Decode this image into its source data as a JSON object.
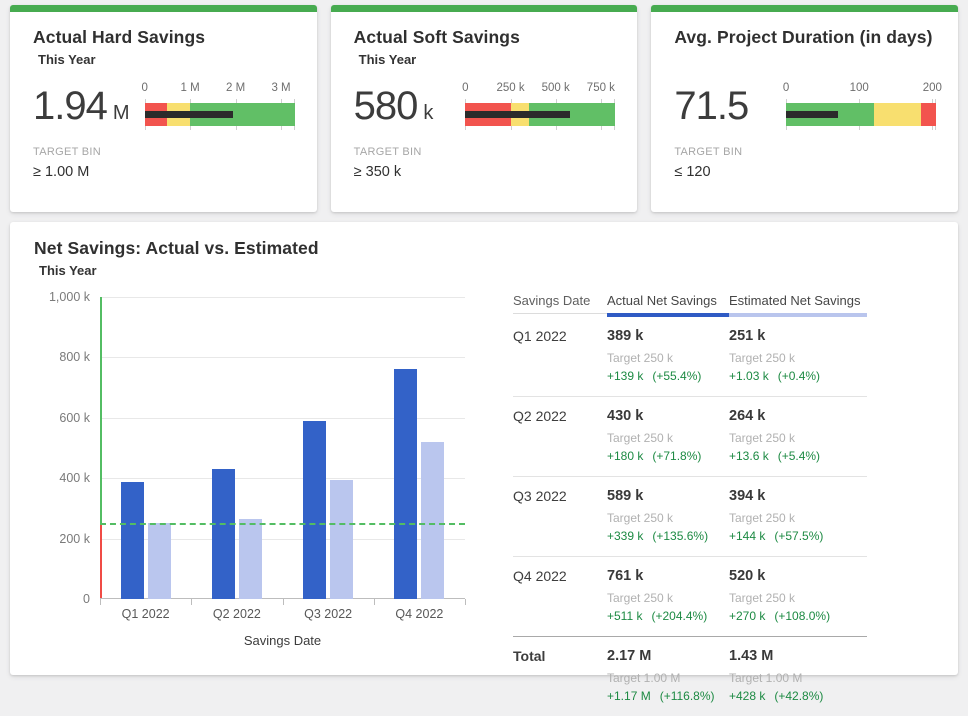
{
  "palette": {
    "accent_green": "#47ab50",
    "bullet_red": "#f2544e",
    "bullet_yellow": "#f8df6f",
    "bullet_green": "#61bf66",
    "measure_black": "#2b2b2b",
    "bar_actual_blue": "#3362c8",
    "bar_estimated_lavender": "#bac6ee",
    "target_dash_green": "#53bd63",
    "axis_below_target_red": "#f04b45",
    "delta_text_green": "#1d8a43"
  },
  "kpi_cards": [
    {
      "title": "Actual Hard Savings",
      "subtitle": "This Year",
      "value": "1.94",
      "unit": "M",
      "target_bin_label": "TARGET BIN",
      "target_bin_value": "≥ 1.00 M",
      "bullet": {
        "max": 3.3,
        "value": 1.94,
        "segments": [
          {
            "color": "red",
            "from": 0,
            "to": 0.5
          },
          {
            "color": "yellow",
            "from": 0.5,
            "to": 1
          },
          {
            "color": "green",
            "from": 1,
            "to": 3.3
          }
        ],
        "ticks": [
          {
            "label": "0",
            "value": 0
          },
          {
            "label": "1 M",
            "value": 1
          },
          {
            "label": "2 M",
            "value": 2
          },
          {
            "label": "3 M",
            "value": 3
          }
        ]
      }
    },
    {
      "title": "Actual Soft Savings",
      "subtitle": "This Year",
      "value": "580",
      "unit": "k",
      "target_bin_label": "TARGET BIN",
      "target_bin_value": "≥ 350 k",
      "bullet": {
        "max": 830,
        "value": 580,
        "segments": [
          {
            "color": "red",
            "from": 0,
            "to": 250
          },
          {
            "color": "yellow",
            "from": 250,
            "to": 350
          },
          {
            "color": "green",
            "from": 350,
            "to": 830
          }
        ],
        "ticks": [
          {
            "label": "0",
            "value": 0
          },
          {
            "label": "250 k",
            "value": 250
          },
          {
            "label": "500 k",
            "value": 500
          },
          {
            "label": "750 k",
            "value": 750
          }
        ]
      }
    },
    {
      "title": "Avg. Project Duration (in days)",
      "subtitle": "",
      "value": "71.5",
      "unit": "",
      "target_bin_label": "TARGET BIN",
      "target_bin_value": "≤ 120",
      "bullet": {
        "max": 205,
        "value": 71.5,
        "segments": [
          {
            "color": "green",
            "from": 0,
            "to": 120
          },
          {
            "color": "yellow",
            "from": 120,
            "to": 185
          },
          {
            "color": "red",
            "from": 185,
            "to": 205
          }
        ],
        "ticks": [
          {
            "label": "0",
            "value": 0
          },
          {
            "label": "100",
            "value": 100
          },
          {
            "label": "200",
            "value": 200
          }
        ]
      }
    }
  ],
  "main": {
    "title": "Net Savings: Actual vs. Estimated",
    "subtitle": "This Year"
  },
  "chart_data": {
    "type": "bar",
    "title": "Net Savings: Actual vs. Estimated",
    "subtitle": "This Year",
    "categories": [
      "Q1 2022",
      "Q2 2022",
      "Q3 2022",
      "Q4 2022"
    ],
    "series": [
      {
        "name": "Actual Net Savings",
        "values": [
          389,
          430,
          589,
          761
        ]
      },
      {
        "name": "Estimated Net Savings",
        "values": [
          251,
          264,
          394,
          520
        ]
      }
    ],
    "unit": "k",
    "xlabel": "Savings Date",
    "ylabel": "",
    "ylim": [
      0,
      1000
    ],
    "yticks": [
      {
        "label": "1,000 k",
        "value": 1000
      },
      {
        "label": "800 k",
        "value": 800
      },
      {
        "label": "600 k",
        "value": 600
      },
      {
        "label": "400 k",
        "value": 400
      },
      {
        "label": "200 k",
        "value": 200
      },
      {
        "label": "0",
        "value": 0
      }
    ],
    "target_value": 250,
    "grid": true,
    "legend_position": "table-right"
  },
  "table": {
    "columns": [
      "Savings Date",
      "Actual Net Savings",
      "Estimated Net Savings"
    ],
    "rows": [
      {
        "label": "Q1 2022",
        "is_total": false,
        "actual": {
          "value": "389 k",
          "target": "Target 250 k",
          "delta": "+139 k",
          "pct": "(+55.4%)"
        },
        "estimated": {
          "value": "251 k",
          "target": "Target 250 k",
          "delta": "+1.03 k",
          "pct": "(+0.4%)"
        }
      },
      {
        "label": "Q2 2022",
        "is_total": false,
        "actual": {
          "value": "430 k",
          "target": "Target 250 k",
          "delta": "+180 k",
          "pct": "(+71.8%)"
        },
        "estimated": {
          "value": "264 k",
          "target": "Target 250 k",
          "delta": "+13.6 k",
          "pct": "(+5.4%)"
        }
      },
      {
        "label": "Q3 2022",
        "is_total": false,
        "actual": {
          "value": "589 k",
          "target": "Target 250 k",
          "delta": "+339 k",
          "pct": "(+135.6%)"
        },
        "estimated": {
          "value": "394 k",
          "target": "Target 250 k",
          "delta": "+144 k",
          "pct": "(+57.5%)"
        }
      },
      {
        "label": "Q4 2022",
        "is_total": false,
        "actual": {
          "value": "761 k",
          "target": "Target 250 k",
          "delta": "+511 k",
          "pct": "(+204.4%)"
        },
        "estimated": {
          "value": "520 k",
          "target": "Target 250 k",
          "delta": "+270 k",
          "pct": "(+108.0%)"
        }
      },
      {
        "label": "Total",
        "is_total": true,
        "actual": {
          "value": "2.17 M",
          "target": "Target 1.00 M",
          "delta": "+1.17 M",
          "pct": "(+116.8%)"
        },
        "estimated": {
          "value": "1.43 M",
          "target": "Target 1.00 M",
          "delta": "+428 k",
          "pct": "(+42.8%)"
        }
      }
    ]
  }
}
